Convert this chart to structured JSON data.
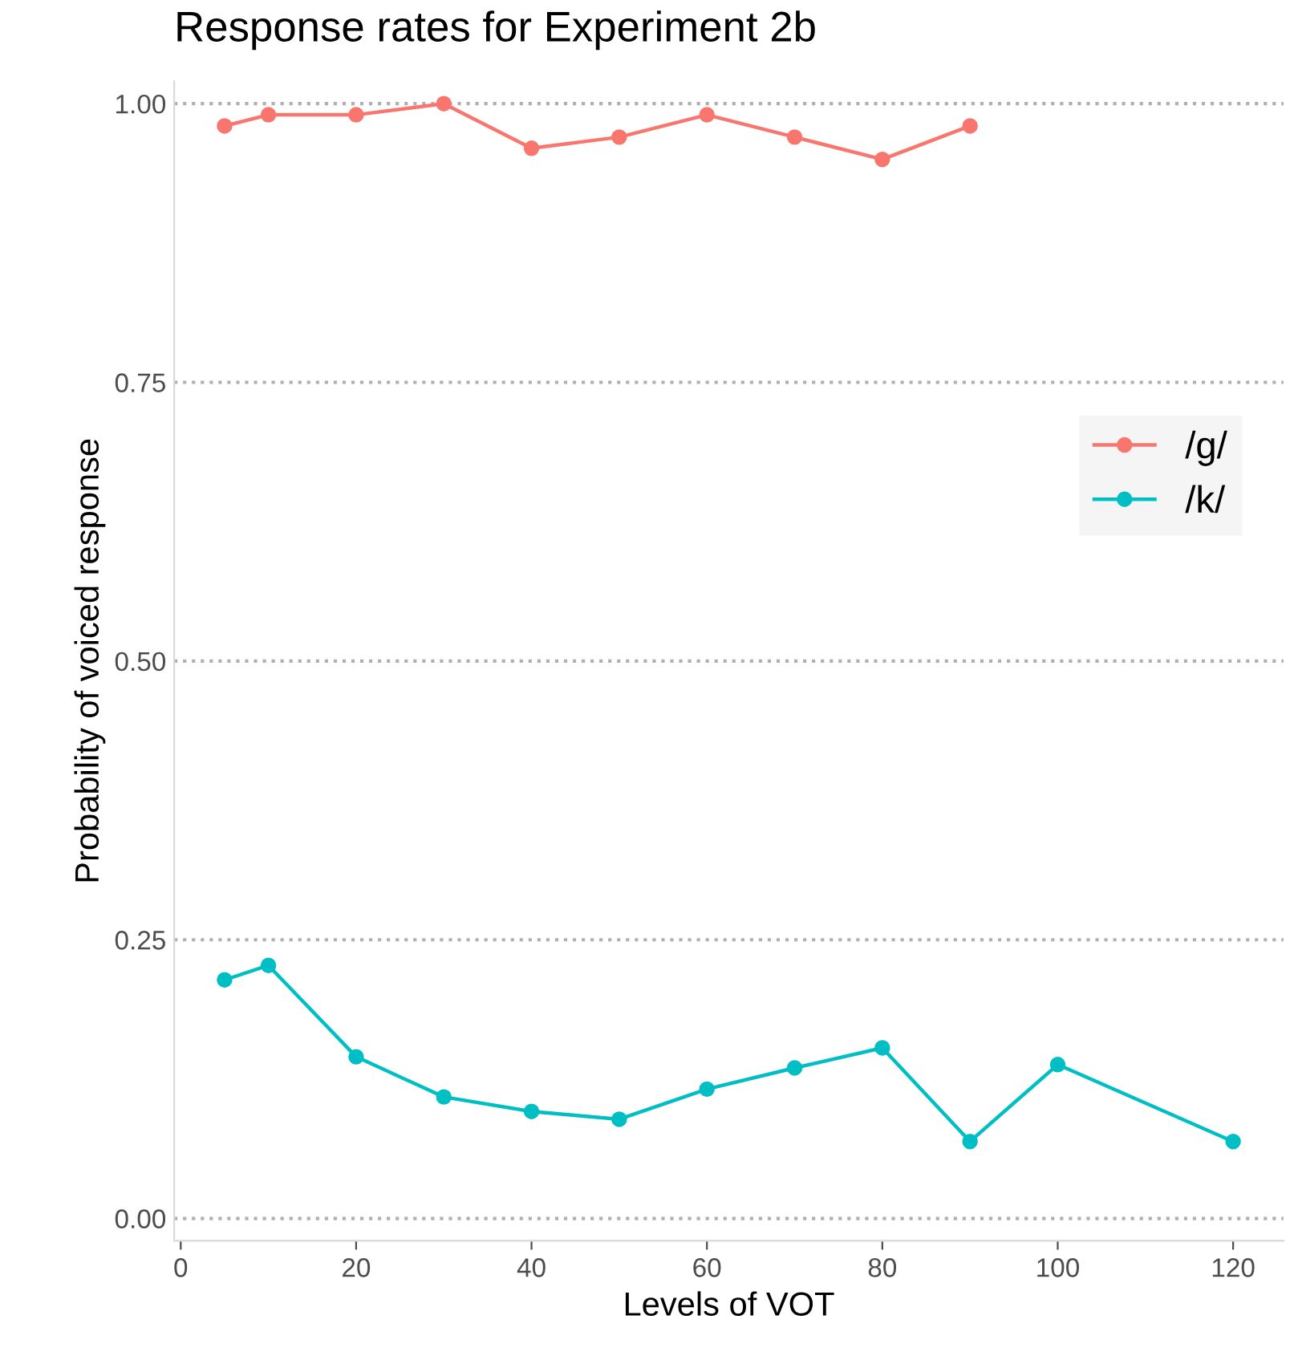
{
  "chart_data": {
    "type": "line",
    "title": "Response rates for Experiment 2b",
    "xlabel": "Levels of VOT",
    "ylabel": "Probability of voiced response",
    "series": [
      {
        "name": "/g/",
        "color": "#f8766d",
        "x": [
          5,
          10,
          20,
          30,
          40,
          50,
          60,
          70,
          80,
          90
        ],
        "values": [
          0.98,
          0.99,
          0.99,
          1.0,
          0.96,
          0.97,
          0.99,
          0.97,
          0.95,
          0.98
        ]
      },
      {
        "name": "/k/",
        "color": "#00bfc4",
        "x": [
          5,
          10,
          20,
          30,
          40,
          50,
          60,
          70,
          80,
          90,
          100,
          120
        ],
        "values": [
          0.214,
          0.227,
          0.145,
          0.109,
          0.096,
          0.089,
          0.116,
          0.135,
          0.153,
          0.069,
          0.138,
          0.069
        ]
      }
    ],
    "xlim": [
      -0.75,
      125.75
    ],
    "xticks": [
      0,
      20,
      40,
      60,
      80,
      100,
      120
    ],
    "ylim": [
      -0.02,
      1.02
    ],
    "yticks": [
      {
        "value": 0,
        "label": "0.00"
      },
      {
        "value": 0.25,
        "label": "0.25"
      },
      {
        "value": 0.5,
        "label": "0.50"
      },
      {
        "value": 0.75,
        "label": "0.75"
      },
      {
        "value": 1,
        "label": "1.00"
      }
    ],
    "grid": "y",
    "legend": "right",
    "marker": "circle",
    "line_style": "solid"
  }
}
